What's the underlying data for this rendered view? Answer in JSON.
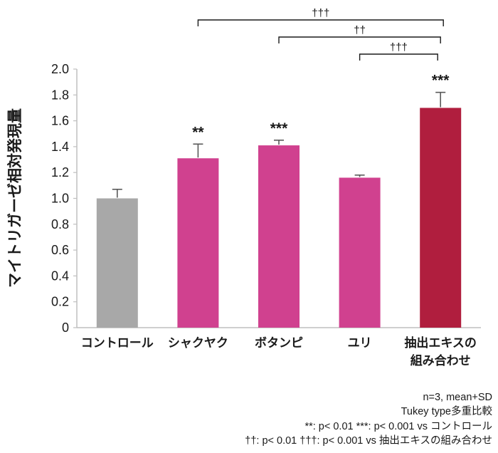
{
  "chart_data": {
    "type": "bar",
    "title": "",
    "ylabel": "マイトリガーゼ相対発現量",
    "xlabel": "",
    "ylim": [
      0,
      2.0
    ],
    "ytick_step": 0.2,
    "grid": false,
    "categories": [
      "コントロール",
      "シャクヤク",
      "ボタンピ",
      "ユリ",
      "抽出エキスの\n組み合わせ"
    ],
    "values": [
      1.0,
      1.31,
      1.41,
      1.16,
      1.7
    ],
    "errors": [
      0.07,
      0.11,
      0.04,
      0.02,
      0.12
    ],
    "bar_colors": [
      "#a8a8a8",
      "#d0418f",
      "#d0418f",
      "#d0418f",
      "#b01e3e"
    ],
    "sig_labels": [
      "",
      "**",
      "***",
      "",
      "***"
    ],
    "brackets": [
      {
        "from": 1,
        "to": 4,
        "label": "†††"
      },
      {
        "from": 2,
        "to": 4,
        "label": "††"
      },
      {
        "from": 3,
        "to": 4,
        "label": "†††"
      }
    ],
    "colors": {
      "axis": "#bfbfbf",
      "text": "#1a1a1a",
      "error_bar": "#595959",
      "bracket": "#1a1a1a"
    }
  },
  "footnotes": [
    "n=3, mean+SD",
    "Tukey type多重比較",
    "**: p< 0.01  ***: p< 0.001 vs コントロール",
    "††: p< 0.01  †††: p< 0.001 vs 抽出エキスの組み合わせ"
  ]
}
